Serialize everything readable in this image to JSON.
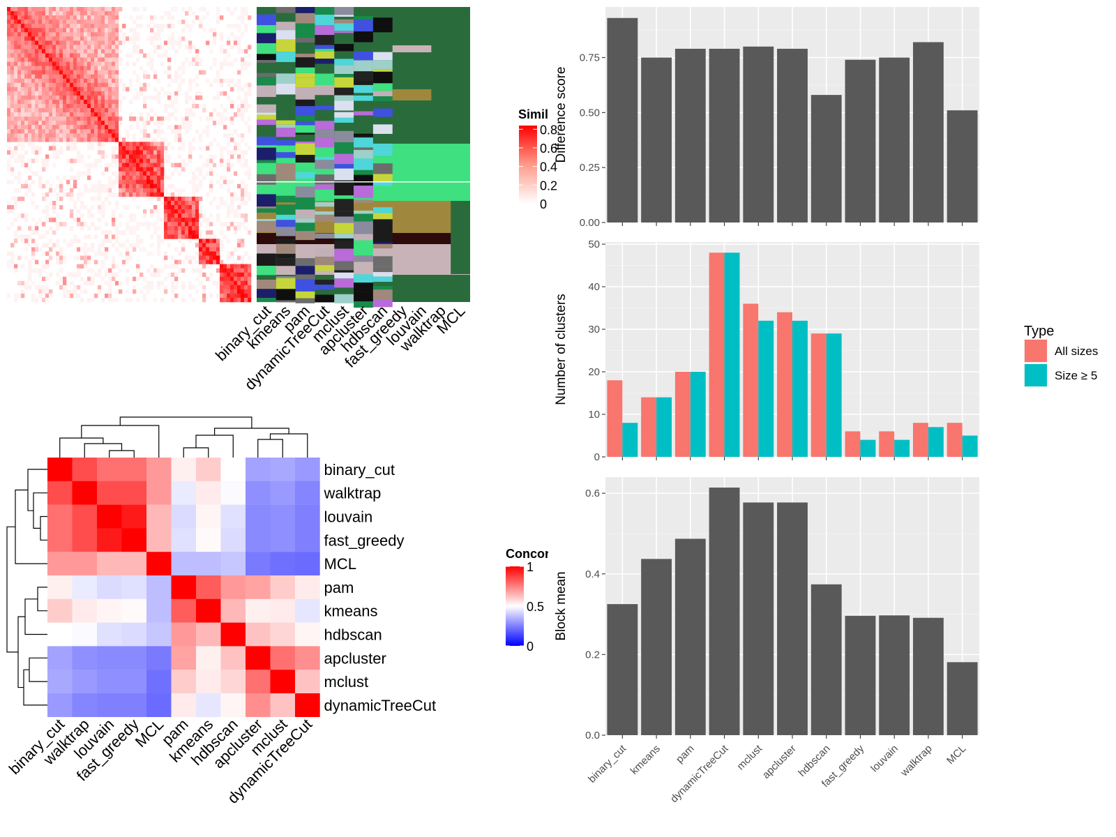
{
  "chart_data": [
    {
      "type": "heatmap",
      "id": "similarity-heatmap",
      "legend_title": "Similarity",
      "legend_ticks": [
        "0.8",
        "0.6",
        "0.4",
        "0.2",
        "0"
      ],
      "legend_tick_values": [
        0.8,
        0.6,
        0.4,
        0.2,
        0
      ],
      "colors": {
        "low": "#ffffff",
        "high": "#ff0000"
      },
      "classification_columns": [
        "binary_cut",
        "kmeans",
        "pam",
        "dynamicTreeCut",
        "mclust",
        "apcluster",
        "hdbscan",
        "fast_greedy",
        "louvain",
        "walktrap",
        "MCL"
      ]
    },
    {
      "type": "heatmap",
      "id": "concordance-heatmap",
      "legend_title": "Concordance",
      "legend_ticks": [
        "1",
        "0.5",
        "0"
      ],
      "legend_tick_values": [
        1,
        0.5,
        0
      ],
      "colors": {
        "low": "#0000ff",
        "mid": "#ffffff",
        "high": "#ff0000"
      },
      "rows": [
        "binary_cut",
        "walktrap",
        "louvain",
        "fast_greedy",
        "MCL",
        "pam",
        "kmeans",
        "hdbscan",
        "apcluster",
        "mclust",
        "dynamicTreeCut"
      ],
      "cols": [
        "binary_cut",
        "walktrap",
        "louvain",
        "fast_greedy",
        "MCL",
        "pam",
        "kmeans",
        "hdbscan",
        "apcluster",
        "mclust",
        "dynamicTreeCut"
      ],
      "values": [
        [
          1.0,
          0.85,
          0.78,
          0.78,
          0.7,
          0.53,
          0.6,
          0.5,
          0.32,
          0.33,
          0.3
        ],
        [
          0.85,
          1.0,
          0.85,
          0.85,
          0.7,
          0.46,
          0.54,
          0.49,
          0.28,
          0.3,
          0.26
        ],
        [
          0.78,
          0.85,
          1.0,
          0.95,
          0.64,
          0.43,
          0.52,
          0.44,
          0.27,
          0.28,
          0.25
        ],
        [
          0.78,
          0.85,
          0.95,
          1.0,
          0.64,
          0.44,
          0.51,
          0.43,
          0.27,
          0.28,
          0.25
        ],
        [
          0.7,
          0.7,
          0.64,
          0.64,
          1.0,
          0.37,
          0.37,
          0.39,
          0.24,
          0.22,
          0.21
        ],
        [
          0.53,
          0.46,
          0.43,
          0.44,
          0.37,
          1.0,
          0.82,
          0.7,
          0.68,
          0.6,
          0.54
        ],
        [
          0.6,
          0.54,
          0.52,
          0.51,
          0.37,
          0.82,
          1.0,
          0.64,
          0.53,
          0.54,
          0.45
        ],
        [
          0.5,
          0.49,
          0.44,
          0.43,
          0.39,
          0.7,
          0.64,
          1.0,
          0.62,
          0.58,
          0.52
        ],
        [
          0.32,
          0.28,
          0.27,
          0.27,
          0.24,
          0.68,
          0.53,
          0.62,
          1.0,
          0.78,
          0.72
        ],
        [
          0.33,
          0.3,
          0.28,
          0.28,
          0.22,
          0.6,
          0.54,
          0.58,
          0.78,
          1.0,
          0.62
        ],
        [
          0.3,
          0.26,
          0.25,
          0.25,
          0.21,
          0.54,
          0.45,
          0.52,
          0.72,
          0.62,
          1.0
        ]
      ]
    },
    {
      "type": "bar",
      "id": "difference-score",
      "ylabel": "Difference score",
      "categories": [
        "binary_cut",
        "kmeans",
        "pam",
        "dynamicTreeCut",
        "mclust",
        "apcluster",
        "hdbscan",
        "fast_greedy",
        "louvain",
        "walktrap",
        "MCL"
      ],
      "values": [
        0.93,
        0.75,
        0.79,
        0.79,
        0.8,
        0.79,
        0.58,
        0.74,
        0.75,
        0.82,
        0.51
      ],
      "ylim": [
        0,
        0.98
      ],
      "yticks": [
        0,
        0.25,
        0.5,
        0.75
      ],
      "ytick_labels": [
        "0.00",
        "0.25",
        "0.50",
        "0.75"
      ],
      "bar_color": "#595959",
      "panel_bg": "#ebebeb"
    },
    {
      "type": "bar",
      "id": "number-of-clusters",
      "ylabel": "Number of clusters",
      "categories": [
        "binary_cut",
        "kmeans",
        "pam",
        "dynamicTreeCut",
        "mclust",
        "apcluster",
        "hdbscan",
        "fast_greedy",
        "louvain",
        "walktrap",
        "MCL"
      ],
      "series": [
        {
          "name": "All sizes",
          "values": [
            18,
            14,
            20,
            48,
            36,
            34,
            29,
            6,
            6,
            8,
            8
          ],
          "color": "#f8766d"
        },
        {
          "name": "Size ≥ 5",
          "values": [
            8,
            14,
            20,
            48,
            32,
            32,
            29,
            4,
            4,
            7,
            5
          ],
          "color": "#00bfc4"
        }
      ],
      "ylim": [
        0,
        50.5
      ],
      "yticks": [
        0,
        10,
        20,
        30,
        40,
        50
      ],
      "ytick_labels": [
        "0",
        "10",
        "20",
        "30",
        "40",
        "50"
      ],
      "legend_title": "Type",
      "legend_position": "right",
      "panel_bg": "#ebebeb"
    },
    {
      "type": "bar",
      "id": "block-mean",
      "ylabel": "Block mean",
      "categories": [
        "binary_cut",
        "kmeans",
        "pam",
        "dynamicTreeCut",
        "mclust",
        "apcluster",
        "hdbscan",
        "fast_greedy",
        "louvain",
        "walktrap",
        "MCL"
      ],
      "values": [
        0.325,
        0.437,
        0.487,
        0.614,
        0.577,
        0.577,
        0.374,
        0.296,
        0.297,
        0.291,
        0.181
      ],
      "ylim": [
        0,
        0.64
      ],
      "yticks": [
        0,
        0.2,
        0.4,
        0.6
      ],
      "ytick_labels": [
        "0.0",
        "0.2",
        "0.4",
        "0.6"
      ],
      "bar_color": "#595959",
      "panel_bg": "#ebebeb"
    }
  ]
}
